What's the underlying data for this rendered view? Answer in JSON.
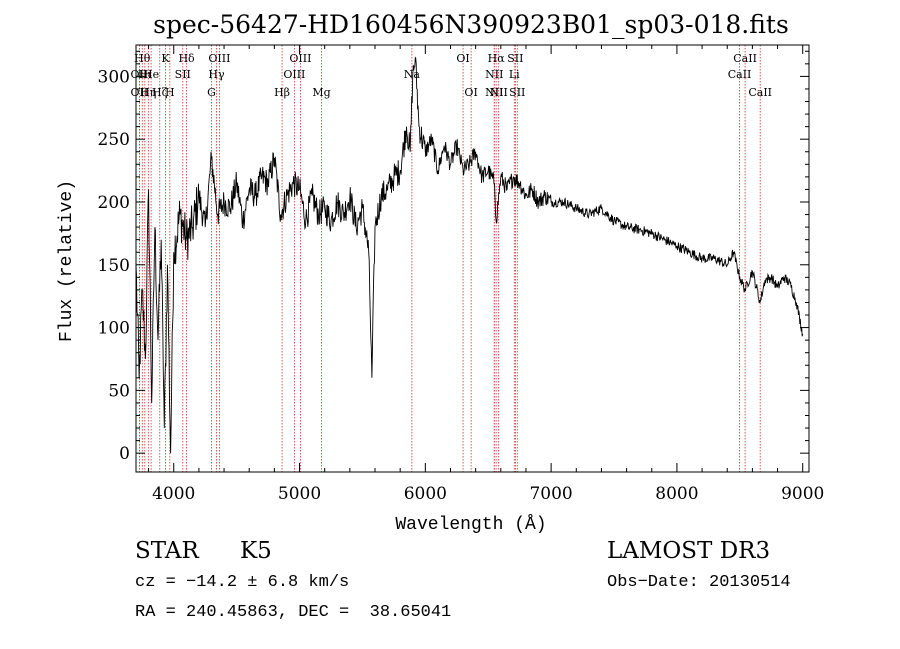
{
  "chart_data": {
    "type": "line",
    "title": "spec-56427-HD160456N390923B01_sp03-018.fits",
    "xlabel": "Wavelength (Å)",
    "ylabel": "Flux (relative)",
    "xlim": [
      3700,
      9050
    ],
    "ylim": [
      -15,
      325
    ],
    "xticks": [
      4000,
      5000,
      6000,
      7000,
      8000,
      9000
    ],
    "yticks": [
      0,
      50,
      100,
      150,
      200,
      250,
      300
    ],
    "xtick_labels": [
      "4000",
      "5000",
      "6000",
      "7000",
      "8000",
      "9000"
    ],
    "ytick_labels": [
      "0",
      "50",
      "100",
      "150",
      "200",
      "250",
      "300"
    ],
    "grid": false,
    "series": [
      {
        "name": "flux",
        "x": [
          3700,
          3725,
          3750,
          3775,
          3800,
          3825,
          3850,
          3875,
          3900,
          3925,
          3950,
          3975,
          4000,
          4050,
          4100,
          4150,
          4200,
          4250,
          4300,
          4350,
          4400,
          4450,
          4500,
          4550,
          4600,
          4650,
          4700,
          4750,
          4800,
          4850,
          4900,
          4950,
          5000,
          5050,
          5100,
          5150,
          5200,
          5250,
          5300,
          5350,
          5400,
          5450,
          5500,
          5550,
          5575,
          5600,
          5650,
          5700,
          5750,
          5800,
          5850,
          5880,
          5900,
          5920,
          5950,
          6000,
          6050,
          6100,
          6150,
          6200,
          6250,
          6300,
          6350,
          6400,
          6450,
          6500,
          6550,
          6563,
          6600,
          6650,
          6700,
          6750,
          6800,
          6850,
          6900,
          6950,
          7000,
          7100,
          7200,
          7300,
          7400,
          7500,
          7600,
          7700,
          7800,
          7900,
          8000,
          8100,
          8200,
          8300,
          8400,
          8450,
          8500,
          8542,
          8600,
          8662,
          8700,
          8750,
          8800,
          8850,
          8900,
          8950,
          9000
        ],
        "y": [
          150,
          60,
          130,
          75,
          210,
          40,
          180,
          90,
          170,
          20,
          150,
          0,
          160,
          190,
          170,
          180,
          205,
          180,
          235,
          190,
          200,
          195,
          215,
          185,
          210,
          205,
          220,
          215,
          235,
          190,
          205,
          215,
          210,
          185,
          205,
          190,
          195,
          185,
          200,
          190,
          205,
          180,
          195,
          160,
          60,
          180,
          205,
          210,
          220,
          225,
          260,
          240,
          300,
          315,
          260,
          240,
          250,
          225,
          245,
          230,
          245,
          225,
          230,
          240,
          220,
          225,
          215,
          185,
          220,
          210,
          220,
          215,
          205,
          210,
          200,
          205,
          200,
          200,
          195,
          190,
          195,
          185,
          180,
          178,
          175,
          170,
          165,
          160,
          155,
          155,
          150,
          160,
          140,
          130,
          145,
          120,
          138,
          140,
          132,
          140,
          135,
          120,
          95
        ]
      }
    ],
    "line_markers": [
      {
        "wavelength": 3750,
        "label": "Hθ",
        "row": 1
      },
      {
        "wavelength": 3727,
        "label": "OII",
        "row": 2
      },
      {
        "wavelength": 3727,
        "label": "OII",
        "row": 3
      },
      {
        "wavelength": 3770,
        "label": "Hι",
        "row": 2
      },
      {
        "wavelength": 3798,
        "label": "Hη",
        "row": 3
      },
      {
        "wavelength": 3820,
        "label": "He",
        "row": 2
      },
      {
        "wavelength": 3889,
        "label": "Hζ",
        "row": 3
      },
      {
        "wavelength": 3934,
        "label": "K",
        "row": 1
      },
      {
        "wavelength": 3969,
        "label": "H",
        "row": 3
      },
      {
        "wavelength": 4072,
        "label": "SII",
        "row": 2
      },
      {
        "wavelength": 4102,
        "label": "Hδ",
        "row": 1
      },
      {
        "wavelength": 4300,
        "label": "G",
        "row": 3
      },
      {
        "wavelength": 4340,
        "label": "Hγ",
        "row": 2
      },
      {
        "wavelength": 4363,
        "label": "OIII",
        "row": 1
      },
      {
        "wavelength": 4861,
        "label": "Hβ",
        "row": 3
      },
      {
        "wavelength": 4959,
        "label": "OIII",
        "row": 2
      },
      {
        "wavelength": 5007,
        "label": "OIII",
        "row": 1
      },
      {
        "wavelength": 5175,
        "label": "Mg",
        "row": 3
      },
      {
        "wavelength": 5893,
        "label": "Na",
        "row": 2
      },
      {
        "wavelength": 6300,
        "label": "OI",
        "row": 1
      },
      {
        "wavelength": 6364,
        "label": "OI",
        "row": 3
      },
      {
        "wavelength": 6548,
        "label": "NII",
        "row": 2
      },
      {
        "wavelength": 6548,
        "label": "NII",
        "row": 3
      },
      {
        "wavelength": 6563,
        "label": "Hα",
        "row": 1
      },
      {
        "wavelength": 6583,
        "label": "NII",
        "row": 3
      },
      {
        "wavelength": 6707,
        "label": "Li",
        "row": 2
      },
      {
        "wavelength": 6716,
        "label": "SII",
        "row": 1
      },
      {
        "wavelength": 6731,
        "label": "SII",
        "row": 3
      },
      {
        "wavelength": 8498,
        "label": "CaII",
        "row": 2
      },
      {
        "wavelength": 8542,
        "label": "CaII",
        "row": 1
      },
      {
        "wavelength": 8662,
        "label": "CaII",
        "row": 3
      }
    ]
  },
  "info": {
    "object_class": "STAR",
    "subclass": "K5",
    "survey": "LAMOST DR3",
    "redshift": "cz = −14.2 ± 6.8 km/s",
    "obs_date": "Obs−Date: 20130514",
    "coordinates": "RA = 240.45863, DEC =  38.65041"
  },
  "colors": {
    "spectrum": "#000000",
    "line_markers": "#cc3333",
    "axes": "#000000",
    "background": "#ffffff"
  }
}
